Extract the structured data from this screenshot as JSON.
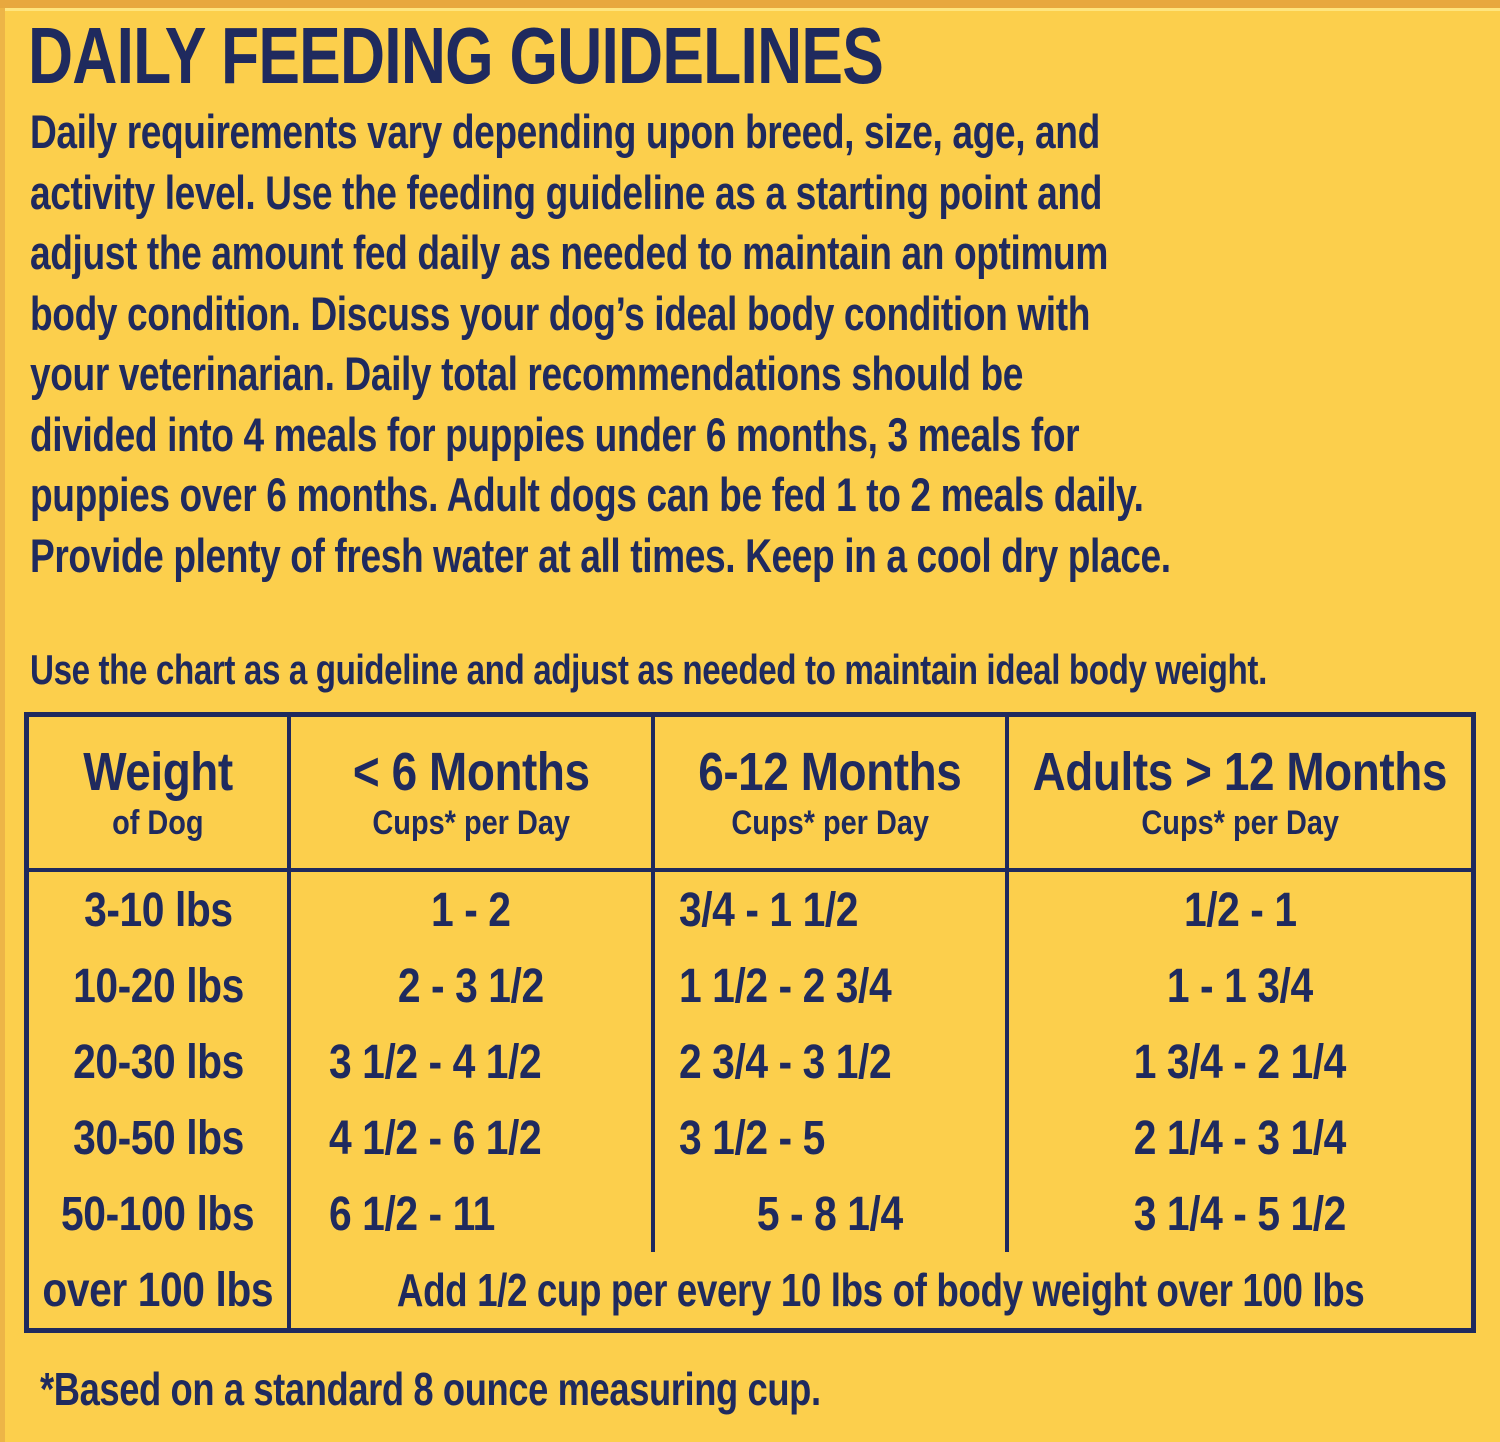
{
  "label": {
    "title": "DAILY FEEDING GUIDELINES",
    "intro_lines": [
      "Daily requirements vary depending upon breed, size, age, and",
      "activity level. Use the feeding guideline as a starting point and",
      "adjust the amount fed daily as needed to maintain an optimum",
      "body condition. Discuss your dog’s ideal body condition with",
      "your veterinarian. Daily total recommendations should be",
      "divided into 4 meals for puppies under 6 months, 3 meals for",
      "puppies over 6 months. Adult dogs can be fed 1 to 2 meals daily.",
      "Provide plenty of fresh water at all times. Keep in a cool dry place."
    ],
    "chart_note": "Use the chart as a guideline and adjust as needed to maintain ideal body weight.",
    "footnote": "*Based on a standard 8 ounce measuring cup."
  },
  "feeding_table": {
    "columns": [
      {
        "title": "Weight",
        "subtitle": "of Dog"
      },
      {
        "title": "< 6 Months",
        "subtitle": "Cups* per Day"
      },
      {
        "title": "6-12 Months",
        "subtitle": "Cups* per Day"
      },
      {
        "title": "Adults > 12 Months",
        "subtitle": "Cups* per Day"
      }
    ],
    "rows": [
      {
        "weight": "3-10 lbs",
        "cups_under_6m": "1 - 2",
        "cups_6_12m": "3/4 - 1 1/2",
        "cups_adult": "1/2 - 1"
      },
      {
        "weight": "10-20 lbs",
        "cups_under_6m": "2 - 3 1/2",
        "cups_6_12m": "1 1/2 - 2 3/4",
        "cups_adult": "1 - 1 3/4"
      },
      {
        "weight": "20-30 lbs",
        "cups_under_6m": "3 1/2 - 4 1/2",
        "cups_6_12m": "2 3/4 - 3 1/2",
        "cups_adult": "1 3/4 - 2 1/4"
      },
      {
        "weight": "30-50 lbs",
        "cups_under_6m": "4 1/2 - 6 1/2",
        "cups_6_12m": "3 1/2 - 5",
        "cups_adult": "2 1/4 - 3 1/4"
      },
      {
        "weight": "50-100 lbs",
        "cups_under_6m": "6 1/2 - 11",
        "cups_6_12m": "5 - 8 1/4",
        "cups_adult": "3 1/4 - 5 1/2"
      }
    ],
    "over_100_row": {
      "weight": "over 100 lbs",
      "note": "Add 1/2 cup per every 10 lbs of body weight over 100 lbs"
    }
  },
  "colors": {
    "background": "#FCCF4C",
    "navy_text": "#1F2A5E",
    "edge_top": "#E8A83E",
    "edge_highlight": "#FFE57E",
    "edge_left": "#EDB547"
  }
}
